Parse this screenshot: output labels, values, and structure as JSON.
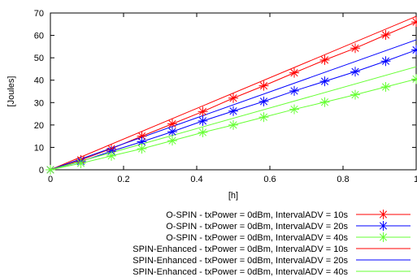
{
  "chart_data": {
    "type": "line",
    "xlabel": "[h]",
    "ylabel": "[Joules]",
    "xlim": [
      0,
      1
    ],
    "ylim": [
      0,
      70
    ],
    "xticks": [
      0,
      0.2,
      0.4,
      0.6,
      0.8,
      1
    ],
    "xtick_labels": [
      "0",
      "0.2",
      "0.4",
      "0.6",
      "0.8",
      "1"
    ],
    "yticks": [
      0,
      10,
      20,
      30,
      40,
      50,
      60,
      70
    ],
    "ytick_labels": [
      "0",
      "10",
      "20",
      "30",
      "40",
      "50",
      "60",
      "70"
    ],
    "grid": false,
    "legend_position": "bottom-right, below plot",
    "series": [
      {
        "name": "O-SPIN -  txPower = 0dBm, IntervalADV = 10s",
        "color": "#ff0000",
        "style": "line-points",
        "marker": "asterisk",
        "x": [
          0,
          0.0833,
          0.1667,
          0.25,
          0.3333,
          0.4167,
          0.5,
          0.5833,
          0.6667,
          0.75,
          0.8333,
          0.9167,
          1.0
        ],
        "y": [
          0,
          4.4,
          9.4,
          15.0,
          20.5,
          26.0,
          32.0,
          37.5,
          43.3,
          49.0,
          54.3,
          60.2,
          66.0
        ]
      },
      {
        "name": "O-SPIN -  txPower = 0dBm, IntervalADV = 20s",
        "color": "#0000ff",
        "style": "line-points",
        "marker": "asterisk",
        "x": [
          0,
          0.0833,
          0.1667,
          0.25,
          0.3333,
          0.4167,
          0.5,
          0.5833,
          0.6667,
          0.75,
          0.8333,
          0.9167,
          1.0
        ],
        "y": [
          0,
          3.7,
          8.3,
          12.5,
          17.0,
          21.8,
          26.2,
          30.5,
          35.2,
          39.5,
          43.8,
          48.5,
          53.5
        ]
      },
      {
        "name": "O-SPIN -  txPower = 0dBm, IntervalADV = 40s",
        "color": "#66ff33",
        "style": "line-points",
        "marker": "asterisk",
        "x": [
          0,
          0.0833,
          0.1667,
          0.25,
          0.3333,
          0.4167,
          0.5,
          0.5833,
          0.6667,
          0.75,
          0.8333,
          0.9167,
          1.0
        ],
        "y": [
          0,
          2.9,
          6.2,
          9.4,
          13.0,
          16.7,
          20.0,
          23.5,
          27.0,
          30.2,
          33.5,
          37.0,
          40.5
        ]
      },
      {
        "name": "SPIN-Enhanced - txPower = 0dBm, IntervalADV = 10s",
        "color": "#ff0000",
        "style": "line",
        "x": [
          0,
          1.0
        ],
        "y": [
          0,
          68.5
        ]
      },
      {
        "name": "SPIN-Enhanced - txPower = 0dBm, IntervalADV = 20s",
        "color": "#0000ff",
        "style": "line",
        "x": [
          0,
          1.0
        ],
        "y": [
          0,
          58.0
        ]
      },
      {
        "name": "SPIN-Enhanced - txPower = 0dBm, IntervalADV = 40s",
        "color": "#66ff33",
        "style": "line",
        "x": [
          0,
          1.0
        ],
        "y": [
          0,
          46.0
        ]
      }
    ]
  }
}
